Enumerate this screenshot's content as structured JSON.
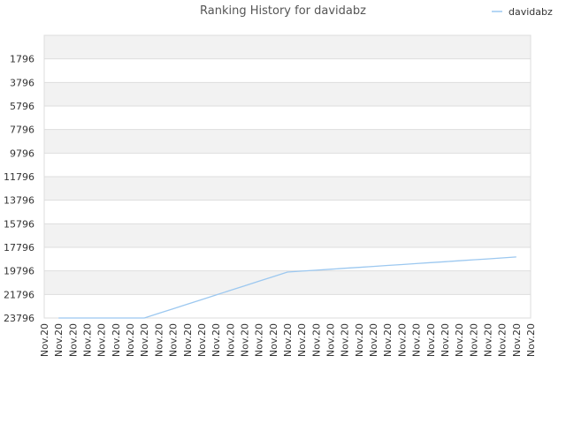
{
  "chart_data": {
    "type": "line",
    "title": "Ranking History for davidabz",
    "xlabel": "",
    "ylabel": "",
    "x": [
      "Nov.20",
      "Nov.20",
      "Nov.20",
      "Nov.20",
      "Nov.20",
      "Nov.20",
      "Nov.20",
      "Nov.20",
      "Nov.20",
      "Nov.20",
      "Nov.20",
      "Nov.20",
      "Nov.20",
      "Nov.20",
      "Nov.20",
      "Nov.20",
      "Nov.20",
      "Nov.20",
      "Nov.20",
      "Nov.20",
      "Nov.20",
      "Nov.20",
      "Nov.20",
      "Nov.20",
      "Nov.20",
      "Nov.20",
      "Nov.20",
      "Nov.20",
      "Nov.20",
      "Nov.20",
      "Nov.20",
      "Nov.20",
      "Nov.20",
      "Nov.20",
      "Nov.20"
    ],
    "y_ticks": [
      1796,
      3796,
      5796,
      7796,
      9796,
      11796,
      13796,
      15796,
      17796,
      19796,
      21796,
      23796
    ],
    "ylim": [
      23796,
      -204
    ],
    "y_reversed": true,
    "grid": true,
    "legend_position": "top-right",
    "series": [
      {
        "name": "davidabz",
        "color": "#9cc8f0",
        "values": [
          23796,
          23796,
          23796,
          23796,
          23796,
          23796,
          23796,
          23796,
          23406,
          23016,
          22626,
          22236,
          21846,
          21456,
          21066,
          20676,
          20286,
          19896,
          19816,
          19736,
          19656,
          19576,
          19496,
          19416,
          19336,
          19256,
          19176,
          19096,
          19016,
          18936,
          18856,
          18776,
          18696,
          18616,
          18536
        ]
      }
    ]
  },
  "colors": {
    "band_dark": "#f2f2f2",
    "band_light": "#ffffff",
    "grid": "#dddddd",
    "frame": "#dddddd"
  }
}
